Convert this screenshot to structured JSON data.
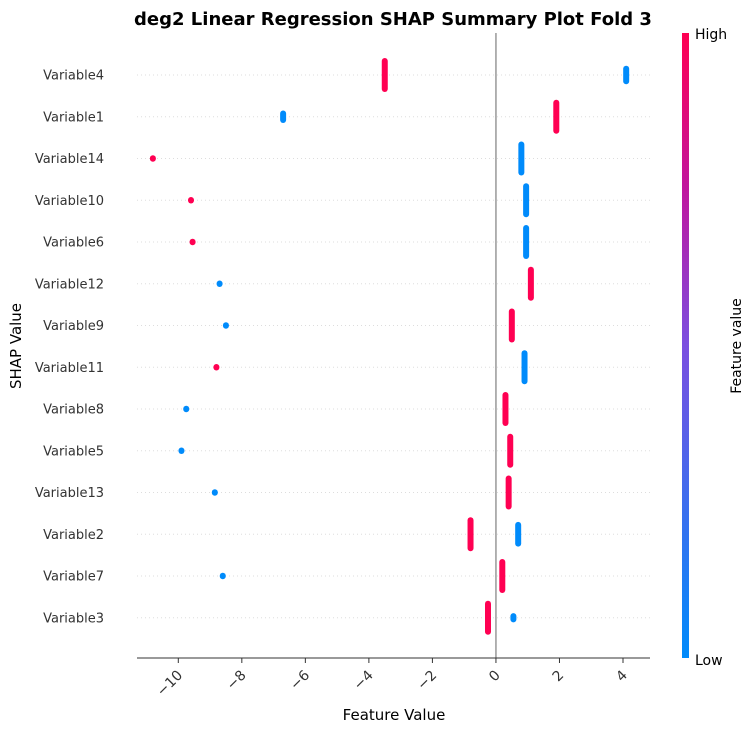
{
  "chart_data": {
    "type": "scatter",
    "title": "deg2 Linear Regression SHAP Summary Plot Fold 3",
    "xlabel": "Feature Value",
    "ylabel": "SHAP Value",
    "xlim": [
      -11.3,
      4.85
    ],
    "xticks": [
      -10,
      -8,
      -6,
      -4,
      -2,
      0,
      2,
      4
    ],
    "xtick_labels": [
      "−10",
      "−8",
      "−6",
      "−4",
      "−2",
      "0",
      "2",
      "4"
    ],
    "zero_line": 0,
    "colorbar": {
      "label": "Feature value",
      "high_label": "High",
      "low_label": "Low",
      "high_color": "#ff0052",
      "low_color": "#008bfb"
    },
    "series": [
      {
        "name": "Variable4",
        "points": [
          {
            "x": -3.5,
            "spread": 1.1,
            "level": "high"
          },
          {
            "x": 4.1,
            "spread": 0.6,
            "level": "low"
          }
        ]
      },
      {
        "name": "Variable1",
        "points": [
          {
            "x": -6.7,
            "spread": 0.4,
            "level": "low"
          },
          {
            "x": 1.9,
            "spread": 1.1,
            "level": "high"
          }
        ]
      },
      {
        "name": "Variable14",
        "points": [
          {
            "x": -10.8,
            "spread": 0.2,
            "level": "high"
          },
          {
            "x": 0.8,
            "spread": 1.1,
            "level": "low"
          }
        ]
      },
      {
        "name": "Variable10",
        "points": [
          {
            "x": -9.6,
            "spread": 0.2,
            "level": "high"
          },
          {
            "x": 0.95,
            "spread": 1.1,
            "level": "low"
          }
        ]
      },
      {
        "name": "Variable6",
        "points": [
          {
            "x": -9.55,
            "spread": 0.2,
            "level": "high"
          },
          {
            "x": 0.95,
            "spread": 1.1,
            "level": "low"
          }
        ]
      },
      {
        "name": "Variable12",
        "points": [
          {
            "x": -8.7,
            "spread": 0.2,
            "level": "low"
          },
          {
            "x": 1.1,
            "spread": 1.1,
            "level": "high"
          }
        ]
      },
      {
        "name": "Variable9",
        "points": [
          {
            "x": -8.5,
            "spread": 0.2,
            "level": "low"
          },
          {
            "x": 0.5,
            "spread": 1.1,
            "level": "high"
          }
        ]
      },
      {
        "name": "Variable11",
        "points": [
          {
            "x": -8.8,
            "spread": 0.2,
            "level": "high"
          },
          {
            "x": 0.9,
            "spread": 1.1,
            "level": "low"
          }
        ]
      },
      {
        "name": "Variable8",
        "points": [
          {
            "x": -9.75,
            "spread": 0.2,
            "level": "low"
          },
          {
            "x": 0.3,
            "spread": 1.1,
            "level": "high"
          }
        ]
      },
      {
        "name": "Variable5",
        "points": [
          {
            "x": -9.9,
            "spread": 0.2,
            "level": "low"
          },
          {
            "x": 0.45,
            "spread": 1.1,
            "level": "high"
          }
        ]
      },
      {
        "name": "Variable13",
        "points": [
          {
            "x": -8.85,
            "spread": 0.2,
            "level": "low"
          },
          {
            "x": 0.4,
            "spread": 1.1,
            "level": "high"
          }
        ]
      },
      {
        "name": "Variable2",
        "points": [
          {
            "x": -0.8,
            "spread": 1.1,
            "level": "high"
          },
          {
            "x": 0.7,
            "spread": 0.8,
            "level": "low"
          }
        ]
      },
      {
        "name": "Variable7",
        "points": [
          {
            "x": -8.6,
            "spread": 0.2,
            "level": "low"
          },
          {
            "x": 0.2,
            "spread": 1.1,
            "level": "high"
          }
        ]
      },
      {
        "name": "Variable3",
        "points": [
          {
            "x": -0.25,
            "spread": 1.1,
            "level": "high"
          },
          {
            "x": 0.55,
            "spread": 0.3,
            "level": "low"
          }
        ]
      }
    ]
  }
}
